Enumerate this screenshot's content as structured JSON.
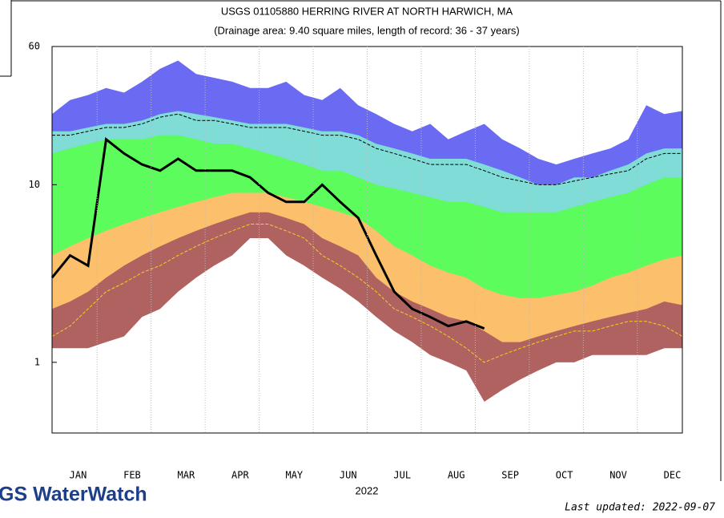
{
  "chart_data": {
    "type": "area",
    "title": "USGS 01105880 HERRING RIVER AT NORTH HARWICH, MA",
    "subtitle": "(Drainage area: 9.40 square miles, length of record: 36 - 37 years)",
    "x_label": "2022",
    "brand": "GS WaterWatch",
    "updated": "Last updated: 2022-09-07",
    "log_scale": true,
    "categories": [
      null,
      "JAN",
      null,
      null,
      "FEB",
      null,
      null,
      "MAR",
      null,
      null,
      "APR",
      null,
      null,
      "MAY",
      null,
      null,
      "JUN",
      null,
      null,
      "JUL",
      null,
      null,
      "AUG",
      null,
      null,
      "SEP",
      null,
      null,
      "OCT",
      null,
      null,
      "NOV",
      null,
      null,
      "DEC",
      null
    ],
    "ylim": [
      0.4,
      60
    ],
    "yticks": [
      1,
      10,
      60
    ],
    "series": [
      {
        "style": "area",
        "color": "#6a6af2",
        "values": [
          25,
          30,
          32,
          35,
          33,
          38,
          45,
          50,
          42,
          40,
          38,
          35,
          35,
          38,
          32,
          30,
          35,
          28,
          25,
          22,
          20,
          22,
          18,
          20,
          22,
          18,
          16,
          14,
          13,
          14,
          15,
          16,
          18,
          28,
          25,
          26
        ]
      },
      {
        "style": "area",
        "color": "#7fdcd6",
        "values": [
          20,
          20,
          21,
          22,
          22,
          23,
          25,
          26,
          25,
          24,
          23,
          22,
          22,
          22,
          21,
          20,
          20,
          19,
          17,
          16,
          15,
          14,
          14,
          14,
          13,
          12,
          11,
          10,
          10,
          11,
          11,
          12,
          13,
          15,
          16,
          16
        ]
      },
      {
        "style": "area",
        "color": "#5cfc5c",
        "values": [
          15,
          16,
          17,
          18,
          18,
          18,
          19,
          19,
          18,
          17,
          17,
          16,
          15,
          14,
          13,
          12,
          12,
          11,
          10,
          9.5,
          9,
          8.5,
          8,
          8,
          7.5,
          7,
          7,
          7,
          7,
          7.5,
          8,
          8.5,
          9,
          10,
          11,
          11
        ]
      },
      {
        "style": "area",
        "color": "#fcc06c",
        "values": [
          4,
          4.5,
          5,
          5.5,
          6,
          6.5,
          7,
          7.5,
          8,
          8.5,
          9,
          9,
          9,
          8.5,
          8,
          7.5,
          7,
          6.5,
          5.5,
          4.5,
          4,
          3.5,
          3.2,
          3,
          2.6,
          2.4,
          2.3,
          2.3,
          2.4,
          2.5,
          2.7,
          3,
          3.2,
          3.5,
          3.8,
          4
        ]
      },
      {
        "style": "area",
        "color": "#b06260",
        "values": [
          2,
          2.2,
          2.5,
          3,
          3.5,
          4,
          4.5,
          5,
          5.5,
          6,
          6.5,
          7,
          7,
          6.5,
          6,
          5,
          4.5,
          4,
          3,
          2.5,
          2.2,
          2,
          1.8,
          1.7,
          1.5,
          1.3,
          1.3,
          1.4,
          1.5,
          1.6,
          1.7,
          1.8,
          1.9,
          2,
          2.2,
          2.1
        ]
      },
      {
        "style": "area",
        "color": "#ffffff",
        "values": [
          1.2,
          1.2,
          1.2,
          1.3,
          1.4,
          1.8,
          2,
          2.5,
          3,
          3.5,
          4,
          5,
          5,
          4,
          3.5,
          3,
          2.6,
          2.2,
          1.8,
          1.5,
          1.3,
          1.1,
          1,
          0.9,
          0.6,
          0.7,
          0.8,
          0.9,
          1,
          1,
          1.1,
          1.1,
          1.1,
          1.1,
          1.2,
          1.2
        ]
      },
      {
        "style": "dashed",
        "color": "#000000",
        "values": [
          19,
          19,
          20,
          21,
          21,
          22,
          24,
          25,
          23,
          23,
          22,
          21,
          21,
          21,
          20,
          19,
          19,
          18,
          16,
          15,
          14,
          13,
          13,
          13,
          12,
          11,
          10.5,
          10,
          10,
          10.5,
          11,
          11.5,
          12,
          14,
          15,
          15
        ]
      },
      {
        "style": "dashed",
        "color": "#f2d21c",
        "values": [
          1.4,
          1.6,
          2,
          2.5,
          2.8,
          3.2,
          3.5,
          4,
          4.5,
          5,
          5.5,
          6,
          6,
          5.5,
          5,
          4,
          3.5,
          3,
          2.5,
          2,
          1.8,
          1.6,
          1.4,
          1.2,
          1,
          1.1,
          1.2,
          1.3,
          1.4,
          1.5,
          1.5,
          1.6,
          1.7,
          1.7,
          1.6,
          1.4
        ]
      },
      {
        "style": "line",
        "color": "#000000",
        "values": [
          3,
          4,
          3.5,
          18,
          15,
          13,
          12,
          14,
          12,
          12,
          12,
          11,
          9,
          8,
          8,
          10,
          8,
          6.5,
          4,
          2.5,
          2,
          1.8,
          1.6,
          1.7,
          1.55,
          null,
          null,
          null,
          null,
          null,
          null,
          null,
          null,
          null,
          null,
          null
        ]
      }
    ]
  }
}
